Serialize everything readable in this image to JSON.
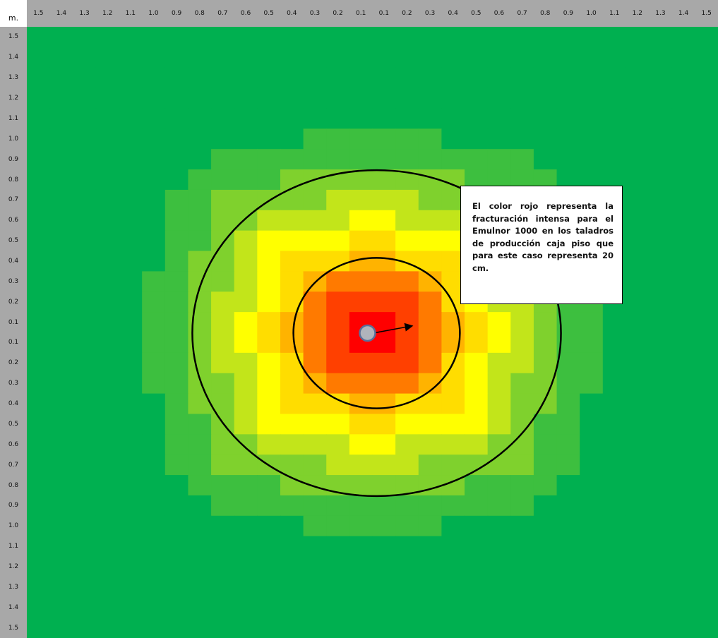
{
  "chart_data": {
    "type": "heatmap",
    "unit_label": "m.",
    "x_tick_labels": [
      "1.5",
      "1.4",
      "1.3",
      "1.2",
      "1.1",
      "1.0",
      "0.9",
      "0.8",
      "0.7",
      "0.6",
      "0.5",
      "0.4",
      "0.3",
      "0.2",
      "0.1",
      "0.1",
      "0.2",
      "0.3",
      "0.4",
      "0.5",
      "0.6",
      "0.7",
      "0.8",
      "0.9",
      "1.0",
      "1.1",
      "1.2",
      "1.3",
      "1.4",
      "1.5"
    ],
    "y_tick_labels": [
      "1.5",
      "1.4",
      "1.3",
      "1.2",
      "1.1",
      "1.0",
      "0.9",
      "0.8",
      "0.7",
      "0.6",
      "0.5",
      "0.4",
      "0.3",
      "0.2",
      "0.1",
      "0.1",
      "0.2",
      "0.3",
      "0.4",
      "0.5",
      "0.6",
      "0.7",
      "0.8",
      "0.9",
      "1.0",
      "1.1",
      "1.2",
      "1.3",
      "1.4",
      "1.5"
    ],
    "grid_cells": [
      30,
      30
    ],
    "color_scale": [
      "#00b050",
      "#3dbf3f",
      "#7fd12d",
      "#c2e51a",
      "#ffff00",
      "#ffdd00",
      "#ffb300",
      "#ff7a00",
      "#ff4000",
      "#ff0000"
    ],
    "outer_circle_radius_m": 0.8,
    "inner_circle_radius_m": 0.3,
    "annotation": "El color rojo representa la fracturación intensa para el Emulnor 1000 en los taladros de producción caja piso que para este caso representa 20 cm."
  }
}
